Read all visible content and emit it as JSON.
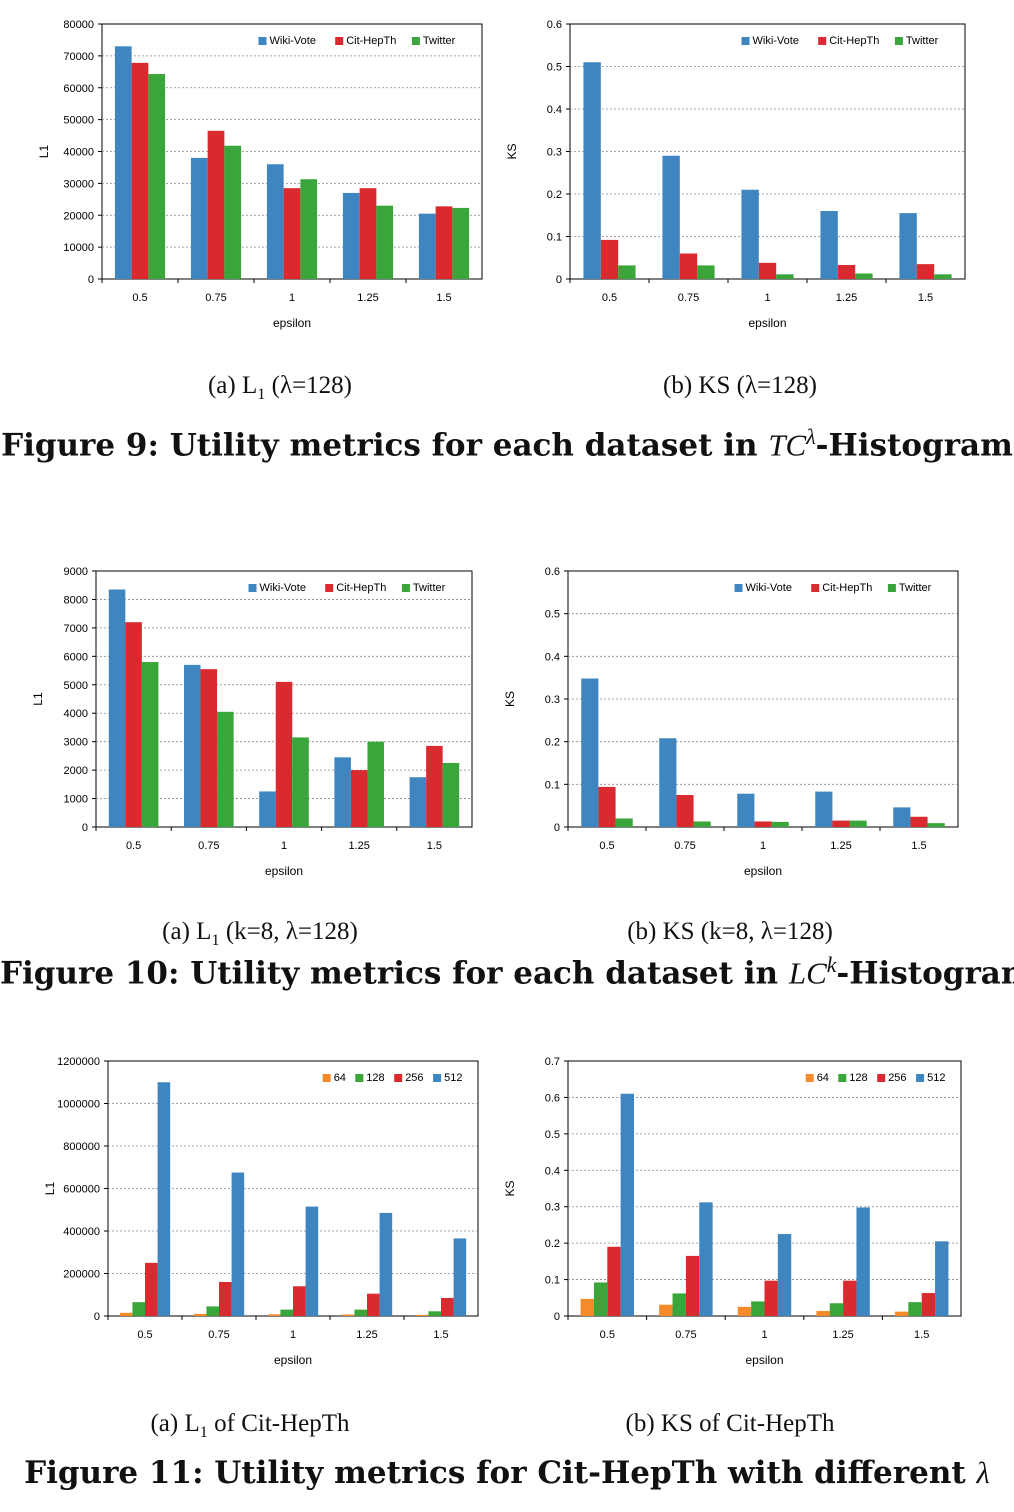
{
  "chart_data": [
    {
      "type": "bar",
      "categories": [
        "0.5",
        "0.75",
        "1",
        "1.25",
        "1.5"
      ],
      "series": [
        {
          "name": "Wiki-Vote",
          "values": [
            73000,
            38000,
            36000,
            27000,
            20500
          ]
        },
        {
          "name": "Cit-HepTh",
          "values": [
            67800,
            46500,
            28500,
            28500,
            22800
          ]
        },
        {
          "name": "Twitter",
          "values": [
            64300,
            41800,
            31300,
            23000,
            22300
          ]
        }
      ],
      "xlabel": "epsilon",
      "ylabel": "L1",
      "ylim": [
        0,
        80000
      ],
      "yticks": [
        "0",
        "10000",
        "20000",
        "30000",
        "40000",
        "50000",
        "60000",
        "70000",
        "80000"
      ],
      "grid": true,
      "legend": "top-right"
    },
    {
      "type": "bar",
      "categories": [
        "0.5",
        "0.75",
        "1",
        "1.25",
        "1.5"
      ],
      "series": [
        {
          "name": "Wiki-Vote",
          "values": [
            0.51,
            0.29,
            0.21,
            0.16,
            0.155
          ]
        },
        {
          "name": "Cit-HepTh",
          "values": [
            0.092,
            0.06,
            0.038,
            0.033,
            0.035
          ]
        },
        {
          "name": "Twitter",
          "values": [
            0.032,
            0.032,
            0.011,
            0.013,
            0.011
          ]
        }
      ],
      "xlabel": "epsilon",
      "ylabel": "KS",
      "ylim": [
        0,
        0.6
      ],
      "yticks": [
        "0",
        "0.1",
        "0.2",
        "0.3",
        "0.4",
        "0.5",
        "0.6"
      ],
      "grid": true,
      "legend": "top-right"
    },
    {
      "type": "bar",
      "categories": [
        "0.5",
        "0.75",
        "1",
        "1.25",
        "1.5"
      ],
      "series": [
        {
          "name": "Wiki-Vote",
          "values": [
            8350,
            5700,
            1250,
            2450,
            1750
          ]
        },
        {
          "name": "Cit-HepTh",
          "values": [
            7200,
            5550,
            5100,
            2000,
            2850
          ]
        },
        {
          "name": "Twitter",
          "values": [
            5800,
            4050,
            3150,
            3000,
            2250
          ]
        }
      ],
      "xlabel": "epsilon",
      "ylabel": "L1",
      "ylim": [
        0,
        9000
      ],
      "yticks": [
        "0",
        "1000",
        "2000",
        "3000",
        "4000",
        "5000",
        "6000",
        "7000",
        "8000",
        "9000"
      ],
      "grid": true,
      "legend": "top-right"
    },
    {
      "type": "bar",
      "categories": [
        "0.5",
        "0.75",
        "1",
        "1.25",
        "1.5"
      ],
      "series": [
        {
          "name": "Wiki-Vote",
          "values": [
            0.348,
            0.208,
            0.078,
            0.083,
            0.046
          ]
        },
        {
          "name": "Cit-HepTh",
          "values": [
            0.094,
            0.075,
            0.013,
            0.015,
            0.024
          ]
        },
        {
          "name": "Twitter",
          "values": [
            0.02,
            0.013,
            0.012,
            0.015,
            0.009
          ]
        }
      ],
      "xlabel": "epsilon",
      "ylabel": "KS",
      "ylim": [
        0,
        0.6
      ],
      "yticks": [
        "0",
        "0.1",
        "0.2",
        "0.3",
        "0.4",
        "0.5",
        "0.6"
      ],
      "grid": true,
      "legend": "top-right"
    },
    {
      "type": "bar",
      "categories": [
        "0.5",
        "0.75",
        "1",
        "1.25",
        "1.5"
      ],
      "series": [
        {
          "name": "64",
          "values": [
            15000,
            10000,
            8000,
            7000,
            5000
          ]
        },
        {
          "name": "128",
          "values": [
            65000,
            45000,
            30000,
            30000,
            22000
          ]
        },
        {
          "name": "256",
          "values": [
            250000,
            160000,
            140000,
            105000,
            85000
          ]
        },
        {
          "name": "512",
          "values": [
            1100000,
            675000,
            515000,
            485000,
            365000
          ]
        }
      ],
      "xlabel": "epsilon",
      "ylabel": "L1",
      "ylim": [
        0,
        1200000
      ],
      "yticks": [
        "0",
        "200000",
        "400000",
        "600000",
        "800000",
        "1000000",
        "1200000"
      ],
      "grid": true,
      "legend": "top-right"
    },
    {
      "type": "bar",
      "categories": [
        "0.5",
        "0.75",
        "1",
        "1.25",
        "1.5"
      ],
      "series": [
        {
          "name": "64",
          "values": [
            0.047,
            0.031,
            0.025,
            0.014,
            0.012
          ]
        },
        {
          "name": "128",
          "values": [
            0.092,
            0.062,
            0.04,
            0.035,
            0.038
          ]
        },
        {
          "name": "256",
          "values": [
            0.19,
            0.165,
            0.097,
            0.097,
            0.063
          ]
        },
        {
          "name": "512",
          "values": [
            0.61,
            0.312,
            0.225,
            0.298,
            0.205
          ]
        }
      ],
      "xlabel": "epsilon",
      "ylabel": "KS",
      "ylim": [
        0,
        0.7
      ],
      "yticks": [
        "0",
        "0.1",
        "0.2",
        "0.3",
        "0.4",
        "0.5",
        "0.6",
        "0.7"
      ],
      "grid": true,
      "legend": "top-right"
    }
  ],
  "colors": {
    "Wiki-Vote": "#3f86c0",
    "Cit-HepTh": "#d92b2f",
    "Twitter": "#3aa53a",
    "64": "#f48a2a",
    "128": "#3aa53a",
    "256": "#d92b2f",
    "512": "#3f86c0"
  },
  "captions": {
    "fig9a_prefix": "(a)  L",
    "fig9a_sub": "1",
    "fig9a_rest": " (λ=128)",
    "fig9b": "(b)  KS (λ=128)",
    "fig9_prefix": "Figure 9: Utility metrics for each dataset in ",
    "fig9_tc": "TC",
    "fig9_sup": "λ",
    "fig9_suffix": "-Histogram",
    "fig10a_prefix": "(a)  L",
    "fig10a_sub": "1",
    "fig10a_rest": " (k=8, λ=128)",
    "fig10b": "(b)  KS (k=8, λ=128)",
    "fig10_prefix": "Figure 10: Utility metrics for each dataset in ",
    "fig10_lc": "LC",
    "fig10_sup": "k",
    "fig10_suffix": "-Histogram",
    "fig11a_prefix": "(a)  L",
    "fig11a_sub": "1",
    "fig11a_rest": " of Cit-HepTh",
    "fig11b": "(b)  KS of Cit-HepTh",
    "fig11_prefix": "Figure 11: Utility metrics for Cit-HepTh with different ",
    "fig11_lambda": "λ"
  }
}
